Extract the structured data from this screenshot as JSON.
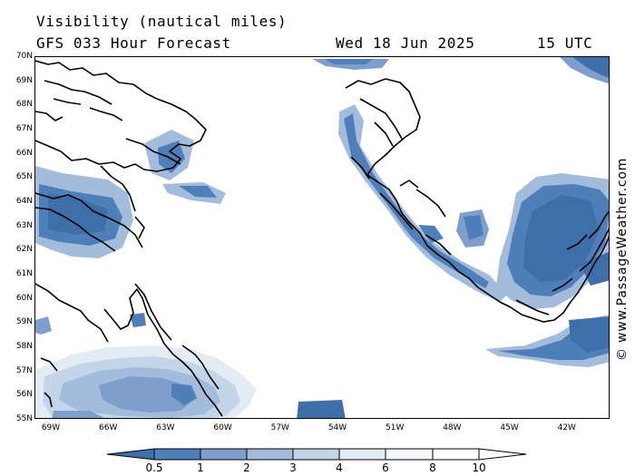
{
  "header": {
    "title": "Visibility (nautical miles)",
    "forecast": "GFS 033 Hour Forecast",
    "date": "Wed 18 Jun 2025",
    "time": "15 UTC"
  },
  "credit": "© www.PassageWeather.com",
  "map": {
    "region": "Davis Strait / Labrador Sea / Southern Greenland",
    "lat_labels": [
      "70N",
      "69N",
      "68N",
      "67N",
      "66N",
      "65N",
      "64N",
      "63N",
      "62N",
      "61N",
      "60N",
      "59N",
      "58N",
      "57N",
      "56N",
      "55N"
    ],
    "lon_labels": [
      "69W",
      "66W",
      "63W",
      "60W",
      "57W",
      "54W",
      "51W",
      "48W",
      "45W",
      "42W"
    ],
    "lat_range": [
      55,
      70
    ],
    "lon_range": [
      -70,
      -40
    ]
  },
  "legend": {
    "values": [
      "0.5",
      "1",
      "2",
      "3",
      "4",
      "6",
      "8",
      "10"
    ],
    "colors": [
      "#3e6fa8",
      "#4f7fb8",
      "#7e9fcb",
      "#a3bcdc",
      "#c4d5ea",
      "#e3ebf5",
      "#f4f7fb",
      "#ffffff"
    ]
  }
}
